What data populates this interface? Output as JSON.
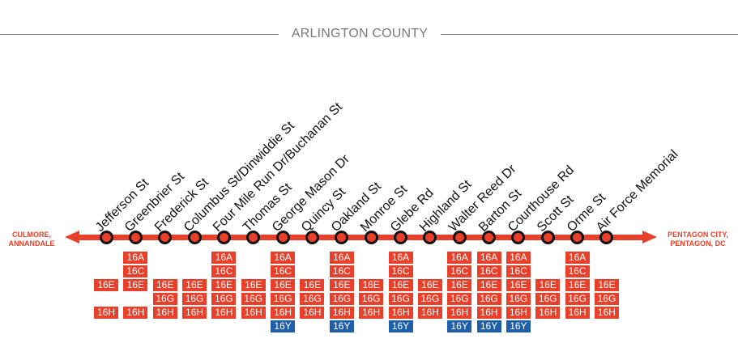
{
  "header": {
    "county": "ARLINGTON COUNTY"
  },
  "endpoints": {
    "west": [
      "CULMORE,",
      "ANNANDALE"
    ],
    "east": [
      "PENTAGON CITY,",
      "PENTAGON, DC"
    ]
  },
  "colors": {
    "route": "#e8402a",
    "route_16y": "#1f5ea8",
    "stop_ring": "#111111"
  },
  "stops": [
    {
      "name": "Jefferson St",
      "routes": [
        "16E",
        "16H"
      ]
    },
    {
      "name": "Greenbrier St",
      "routes": [
        "16A",
        "16C",
        "16E",
        "16H"
      ]
    },
    {
      "name": "Frederick St",
      "routes": [
        "16E",
        "16G",
        "16H"
      ]
    },
    {
      "name": "Columbus St/Dinwiddie St",
      "routes": [
        "16E",
        "16G",
        "16H"
      ]
    },
    {
      "name": "Four Mile Run Dr/Buchanan St",
      "routes": [
        "16A",
        "16C",
        "16E",
        "16G",
        "16H"
      ]
    },
    {
      "name": "Thomas St",
      "routes": [
        "16E",
        "16G",
        "16H"
      ]
    },
    {
      "name": "George Mason Dr",
      "routes": [
        "16A",
        "16C",
        "16E",
        "16G",
        "16H",
        "16Y"
      ]
    },
    {
      "name": "Quincy St",
      "routes": [
        "16E",
        "16G",
        "16H"
      ]
    },
    {
      "name": "Oakland St",
      "routes": [
        "16A",
        "16C",
        "16E",
        "16G",
        "16H",
        "16Y"
      ]
    },
    {
      "name": "Monroe St",
      "routes": [
        "16E",
        "16G",
        "16H"
      ]
    },
    {
      "name": "Glebe Rd",
      "routes": [
        "16A",
        "16C",
        "16E",
        "16G",
        "16H",
        "16Y"
      ]
    },
    {
      "name": "Highland St",
      "routes": [
        "16E",
        "16G",
        "16H"
      ]
    },
    {
      "name": "Walter Reed Dr",
      "routes": [
        "16A",
        "16C",
        "16E",
        "16G",
        "16H",
        "16Y"
      ]
    },
    {
      "name": "Barton St",
      "routes": [
        "16A",
        "16C",
        "16E",
        "16G",
        "16H",
        "16Y"
      ]
    },
    {
      "name": "Courthouse Rd",
      "routes": [
        "16A",
        "16C",
        "16E",
        "16G",
        "16H",
        "16Y"
      ]
    },
    {
      "name": "Scott St",
      "routes": [
        "16E",
        "16G",
        "16H"
      ]
    },
    {
      "name": "Orme St",
      "routes": [
        "16A",
        "16C",
        "16E",
        "16G",
        "16H"
      ]
    },
    {
      "name": "Air Force Memorial",
      "routes": [
        "16E",
        "16G",
        "16H"
      ]
    }
  ]
}
